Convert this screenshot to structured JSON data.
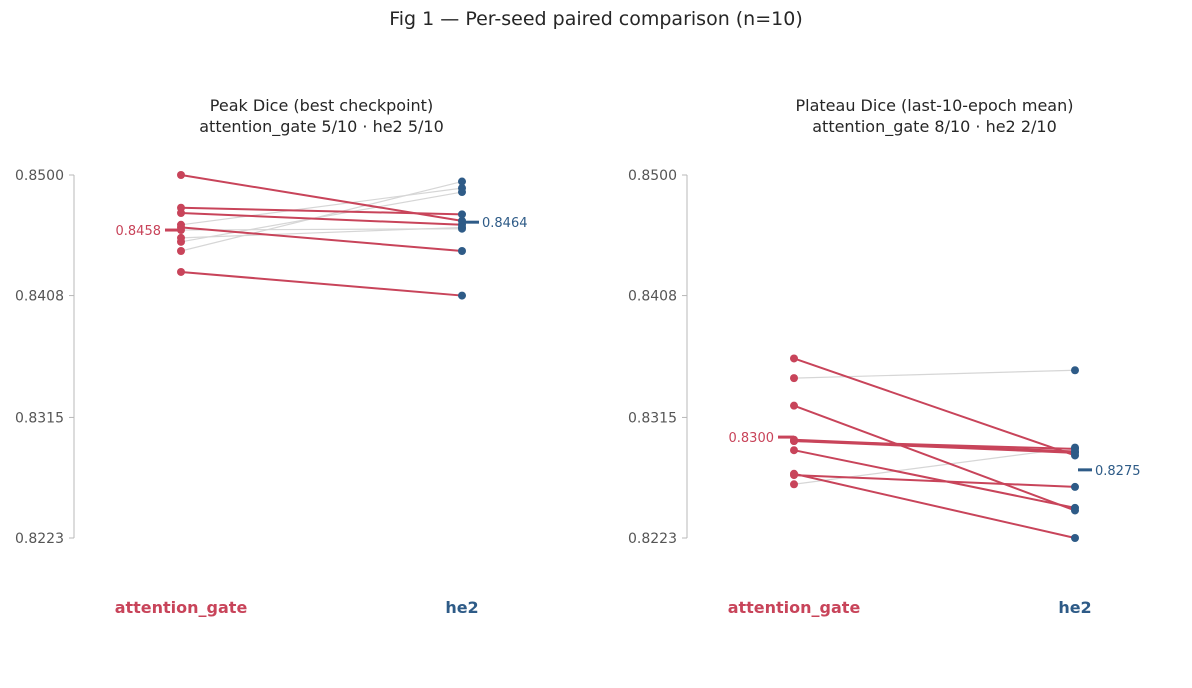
{
  "figure_title": "Fig 1 — Per-seed paired comparison (n=10)",
  "colors": {
    "attention_gate": "#c8445a",
    "he2": "#2e5b87",
    "neutral": "#d6d6d6",
    "axis": "#b8b8b8",
    "tick_text": "#555555"
  },
  "chart_data": [
    {
      "type": "slope",
      "title_line1": "Peak Dice (best checkpoint)",
      "title_line2": "attention_gate 5/10  ·  he2 5/10",
      "categories": [
        "attention_gate",
        "he2"
      ],
      "yticks": [
        "0.8500",
        "0.8408",
        "0.8315",
        "0.8223"
      ],
      "ylim": [
        0.8223,
        0.85
      ],
      "pairs": [
        {
          "attention_gate": 0.85,
          "he2": 0.8465,
          "winner": "attention_gate"
        },
        {
          "attention_gate": 0.8475,
          "he2": 0.847,
          "winner": "attention_gate"
        },
        {
          "attention_gate": 0.8471,
          "he2": 0.8462,
          "winner": "attention_gate"
        },
        {
          "attention_gate": 0.846,
          "he2": 0.8442,
          "winner": "attention_gate"
        },
        {
          "attention_gate": 0.8426,
          "he2": 0.8408,
          "winner": "attention_gate"
        },
        {
          "attention_gate": 0.8462,
          "he2": 0.849,
          "winner": "he2"
        },
        {
          "attention_gate": 0.8458,
          "he2": 0.8459,
          "winner": "he2"
        },
        {
          "attention_gate": 0.8449,
          "he2": 0.8487,
          "winner": "he2"
        },
        {
          "attention_gate": 0.8452,
          "he2": 0.846,
          "winner": "he2"
        },
        {
          "attention_gate": 0.8442,
          "he2": 0.8495,
          "winner": "he2"
        }
      ],
      "mean_labels": {
        "attention_gate": "0.8458",
        "he2": "0.8464"
      },
      "means": {
        "attention_gate": 0.8458,
        "he2": 0.8464
      }
    },
    {
      "type": "slope",
      "title_line1": "Plateau Dice (last-10-epoch mean)",
      "title_line2": "attention_gate 8/10  ·  he2 2/10",
      "categories": [
        "attention_gate",
        "he2"
      ],
      "yticks": [
        "0.8500",
        "0.8408",
        "0.8315",
        "0.8223"
      ],
      "ylim": [
        0.8223,
        0.85
      ],
      "pairs": [
        {
          "attention_gate": 0.836,
          "he2": 0.8286,
          "winner": "attention_gate"
        },
        {
          "attention_gate": 0.8324,
          "he2": 0.8244,
          "winner": "attention_gate"
        },
        {
          "attention_gate": 0.8298,
          "he2": 0.8289,
          "winner": "attention_gate"
        },
        {
          "attention_gate": 0.8297,
          "he2": 0.8291,
          "winner": "attention_gate"
        },
        {
          "attention_gate": 0.8297,
          "he2": 0.8288,
          "winner": "attention_gate"
        },
        {
          "attention_gate": 0.829,
          "he2": 0.8246,
          "winner": "attention_gate"
        },
        {
          "attention_gate": 0.8271,
          "he2": 0.8262,
          "winner": "attention_gate"
        },
        {
          "attention_gate": 0.8272,
          "he2": 0.8223,
          "winner": "attention_gate"
        },
        {
          "attention_gate": 0.8345,
          "he2": 0.8351,
          "winner": "he2"
        },
        {
          "attention_gate": 0.8264,
          "he2": 0.8292,
          "winner": "he2"
        }
      ],
      "mean_labels": {
        "attention_gate": "0.8300",
        "he2": "0.8275"
      },
      "means": {
        "attention_gate": 0.83,
        "he2": 0.8275
      }
    }
  ]
}
